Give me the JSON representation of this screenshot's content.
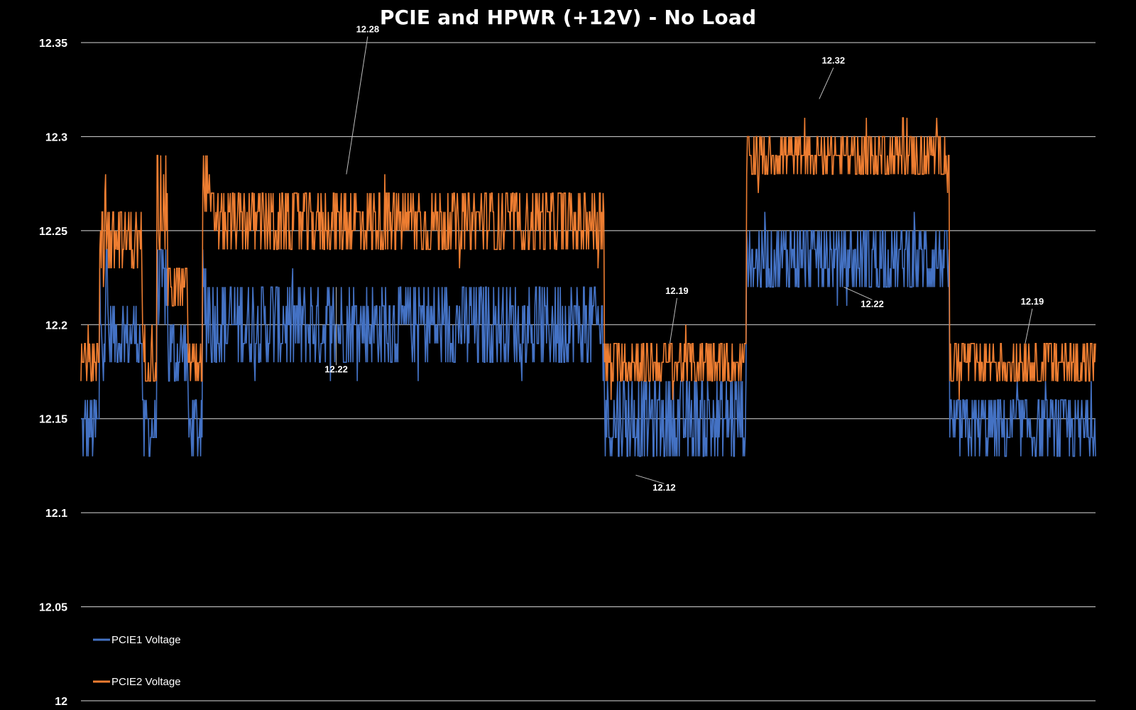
{
  "chart_data": {
    "type": "line",
    "title": "PCIE and HPWR (+12V) - No Load",
    "xlabel": "",
    "ylabel": "",
    "ylim": [
      12,
      12.35
    ],
    "y_ticks": [
      "12",
      "12.05",
      "12.1",
      "12.15",
      "12.2",
      "12.25",
      "12.3",
      "12.35"
    ],
    "grid": true,
    "legend_position": "bottom-left",
    "background_color": "#000000",
    "colors": {
      "pcie1": "#4472C4",
      "pcie2": "#ED7D31",
      "grid": "#d9d9d9",
      "text": "#ffffff"
    },
    "sample_count": 1400,
    "series": [
      {
        "name": "PCIE1 Voltage",
        "color": "#4472C4",
        "segments": [
          {
            "from": 0,
            "to": 26,
            "min": 12.13,
            "max": 12.16
          },
          {
            "from": 26,
            "to": 38,
            "min": 12.17,
            "max": 12.25
          },
          {
            "from": 38,
            "to": 85,
            "min": 12.18,
            "max": 12.21
          },
          {
            "from": 85,
            "to": 105,
            "min": 12.13,
            "max": 12.16
          },
          {
            "from": 105,
            "to": 120,
            "min": 12.2,
            "max": 12.24
          },
          {
            "from": 120,
            "to": 148,
            "min": 12.17,
            "max": 12.2
          },
          {
            "from": 148,
            "to": 168,
            "min": 12.13,
            "max": 12.16
          },
          {
            "from": 168,
            "to": 178,
            "min": 12.18,
            "max": 12.24
          },
          {
            "from": 178,
            "to": 722,
            "min": 12.18,
            "max": 12.22
          },
          {
            "from": 722,
            "to": 918,
            "min": 12.13,
            "max": 12.17
          },
          {
            "from": 918,
            "to": 1198,
            "min": 12.22,
            "max": 12.25
          },
          {
            "from": 1198,
            "to": 1400,
            "min": 12.13,
            "max": 12.16
          }
        ],
        "annotations": [
          {
            "label": "12.22",
            "x": 352,
            "y": 12.22
          },
          {
            "label": "12.12",
            "x": 765,
            "y": 12.12
          },
          {
            "label": "12.22",
            "x": 1052,
            "y": 12.22
          }
        ]
      },
      {
        "name": "PCIE2 Voltage",
        "color": "#ED7D31",
        "segments": [
          {
            "from": 0,
            "to": 26,
            "min": 12.17,
            "max": 12.19
          },
          {
            "from": 26,
            "to": 38,
            "min": 12.22,
            "max": 12.29
          },
          {
            "from": 38,
            "to": 85,
            "min": 12.23,
            "max": 12.26
          },
          {
            "from": 85,
            "to": 105,
            "min": 12.17,
            "max": 12.2
          },
          {
            "from": 105,
            "to": 120,
            "min": 12.24,
            "max": 12.29
          },
          {
            "from": 120,
            "to": 148,
            "min": 12.21,
            "max": 12.23
          },
          {
            "from": 148,
            "to": 168,
            "min": 12.17,
            "max": 12.19
          },
          {
            "from": 168,
            "to": 178,
            "min": 12.26,
            "max": 12.29
          },
          {
            "from": 178,
            "to": 722,
            "min": 12.24,
            "max": 12.27
          },
          {
            "from": 722,
            "to": 918,
            "min": 12.17,
            "max": 12.19
          },
          {
            "from": 918,
            "to": 1198,
            "min": 12.28,
            "max": 12.3
          },
          {
            "from": 1198,
            "to": 1400,
            "min": 12.17,
            "max": 12.19
          }
        ],
        "annotations": [
          {
            "label": "12.28",
            "x": 366,
            "y": 12.28
          },
          {
            "label": "12.19",
            "x": 812,
            "y": 12.19
          },
          {
            "label": "12.32",
            "x": 1018,
            "y": 12.32
          },
          {
            "label": "12.19",
            "x": 1302,
            "y": 12.19
          }
        ]
      }
    ]
  }
}
